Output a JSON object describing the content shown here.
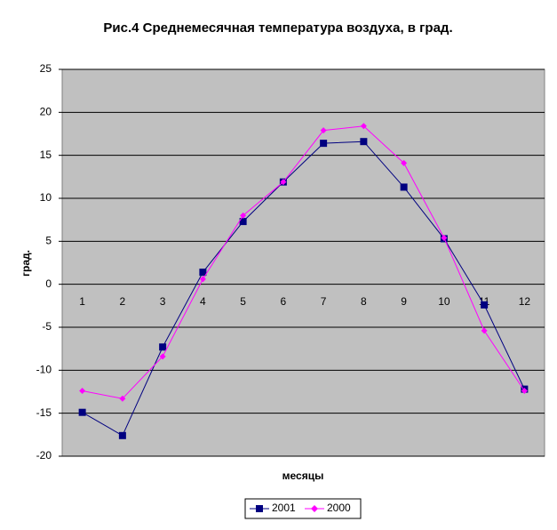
{
  "chart_data": {
    "type": "line",
    "title": "Рис.4 Среднемесячная температура воздуха, в град.",
    "y_label": "град.",
    "x_label": "месяцы",
    "categories": [
      "1",
      "2",
      "3",
      "4",
      "5",
      "6",
      "7",
      "8",
      "9",
      "10",
      "11",
      "12"
    ],
    "series": [
      {
        "name": "2001",
        "color": "#000080",
        "marker": "square",
        "values": [
          -14.9,
          -17.6,
          -7.3,
          1.4,
          7.3,
          11.9,
          16.4,
          16.6,
          11.3,
          5.3,
          -2.4,
          -12.2
        ]
      },
      {
        "name": "2000",
        "color": "#ff00ff",
        "marker": "diamond",
        "values": [
          -12.4,
          -13.3,
          -8.4,
          0.6,
          8.0,
          11.9,
          17.9,
          18.4,
          14.1,
          5.4,
          -5.4,
          -12.4
        ]
      }
    ],
    "ylim": [
      -20,
      25
    ],
    "yticks": [
      -20,
      -15,
      -10,
      -5,
      0,
      5,
      10,
      15,
      20,
      25
    ],
    "grid": true,
    "legend": "bottom"
  }
}
